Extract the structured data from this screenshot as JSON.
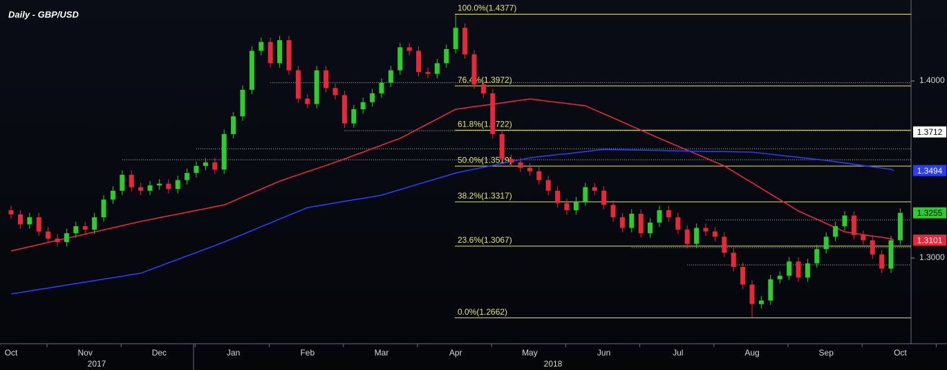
{
  "chart_data": {
    "type": "candlestick",
    "title": "Daily - GBP/USD",
    "categories": [
      "Oct",
      null,
      null,
      null,
      null,
      null,
      null,
      null,
      "Nov",
      null,
      null,
      null,
      null,
      null,
      null,
      null,
      "Dec",
      null,
      null,
      null,
      null,
      null,
      null,
      null,
      "Jan",
      null,
      null,
      null,
      null,
      null,
      null,
      null,
      "Feb",
      null,
      null,
      null,
      null,
      null,
      null,
      null,
      "Mar",
      null,
      null,
      null,
      null,
      null,
      null,
      null,
      "Apr",
      null,
      null,
      null,
      null,
      null,
      null,
      null,
      "May",
      null,
      null,
      null,
      null,
      null,
      null,
      null,
      "Jun",
      null,
      null,
      null,
      null,
      null,
      null,
      null,
      "Jul",
      null,
      null,
      null,
      null,
      null,
      null,
      null,
      "Aug",
      null,
      null,
      null,
      null,
      null,
      null,
      null,
      "Sep",
      null,
      null,
      null,
      null,
      null,
      null,
      null,
      "Oct"
    ],
    "years": [
      "2017",
      "2018"
    ],
    "open": [
      1.327,
      1.3246,
      1.319,
      1.323,
      1.315,
      1.311,
      1.309,
      1.314,
      1.318,
      1.316,
      1.323,
      1.333,
      1.338,
      1.347,
      1.34,
      1.338,
      1.341,
      1.342,
      1.339,
      1.344,
      1.348,
      1.352,
      1.354,
      1.35,
      1.37,
      1.38,
      1.395,
      1.417,
      1.422,
      1.41,
      1.423,
      1.406,
      1.39,
      1.387,
      1.406,
      1.396,
      1.392,
      1.376,
      1.384,
      1.388,
      1.393,
      1.399,
      1.406,
      1.419,
      1.417,
      1.405,
      1.404,
      1.41,
      1.418,
      1.43,
      1.415,
      1.398,
      1.393,
      1.37,
      1.356,
      1.354,
      1.351,
      1.349,
      1.344,
      1.338,
      1.331,
      1.327,
      1.332,
      1.34,
      1.338,
      1.33,
      1.323,
      1.317,
      1.325,
      1.314,
      1.32,
      1.327,
      1.323,
      1.316,
      1.308,
      1.317,
      1.315,
      1.312,
      1.303,
      1.295,
      1.285,
      1.274,
      1.276,
      1.288,
      1.29,
      1.298,
      1.289,
      1.297,
      1.305,
      1.312,
      1.318,
      1.324,
      1.313,
      1.31,
      1.302,
      1.294,
      1.31
    ],
    "high": [
      1.3295,
      1.3271,
      1.3255,
      1.3255,
      1.3175,
      1.3135,
      1.3165,
      1.3205,
      1.3205,
      1.3255,
      1.3355,
      1.3405,
      1.3495,
      1.3495,
      1.3425,
      1.3435,
      1.3445,
      1.3445,
      1.3465,
      1.3505,
      1.3545,
      1.3565,
      1.3565,
      1.3725,
      1.3825,
      1.3975,
      1.4195,
      1.4245,
      1.4245,
      1.4255,
      1.4255,
      1.4085,
      1.3925,
      1.4085,
      1.4085,
      1.3985,
      1.3945,
      1.3865,
      1.3905,
      1.3955,
      1.4015,
      1.4085,
      1.4215,
      1.4215,
      1.4195,
      1.4075,
      1.4125,
      1.4205,
      1.4377,
      1.4325,
      1.4175,
      1.4005,
      1.3955,
      1.3725,
      1.3585,
      1.3565,
      1.3535,
      1.3515,
      1.3465,
      1.3405,
      1.3335,
      1.3345,
      1.3425,
      1.3425,
      1.3405,
      1.3325,
      1.3255,
      1.3275,
      1.3275,
      1.3225,
      1.3295,
      1.3295,
      1.3255,
      1.3185,
      1.3195,
      1.3195,
      1.3175,
      1.3145,
      1.3055,
      1.2975,
      1.2875,
      1.2785,
      1.2905,
      1.2925,
      1.3005,
      1.3005,
      1.2995,
      1.3075,
      1.3145,
      1.3205,
      1.3265,
      1.3265,
      1.3155,
      1.3125,
      1.3045,
      1.3125,
      1.328
    ],
    "low": [
      1.3221,
      1.3165,
      1.3165,
      1.3125,
      1.3085,
      1.3065,
      1.3065,
      1.3115,
      1.3135,
      1.3135,
      1.3205,
      1.3305,
      1.3355,
      1.3375,
      1.3355,
      1.3355,
      1.3385,
      1.3365,
      1.3365,
      1.3415,
      1.3455,
      1.3495,
      1.3475,
      1.3475,
      1.3675,
      1.3775,
      1.3925,
      1.4145,
      1.4075,
      1.4075,
      1.4035,
      1.3875,
      1.3845,
      1.3845,
      1.3935,
      1.3895,
      1.3735,
      1.3735,
      1.3815,
      1.3855,
      1.3905,
      1.3965,
      1.4035,
      1.4145,
      1.4025,
      1.4015,
      1.4015,
      1.4075,
      1.4155,
      1.4125,
      1.3955,
      1.3905,
      1.3675,
      1.3535,
      1.3515,
      1.3485,
      1.3465,
      1.3415,
      1.3355,
      1.3285,
      1.3245,
      1.3245,
      1.3295,
      1.3355,
      1.3275,
      1.3205,
      1.3145,
      1.3145,
      1.3115,
      1.3115,
      1.3175,
      1.3205,
      1.3135,
      1.3055,
      1.3055,
      1.3125,
      1.3095,
      1.3005,
      1.2925,
      1.2825,
      1.2662,
      1.2715,
      1.2735,
      1.2855,
      1.2875,
      1.2865,
      1.2865,
      1.2945,
      1.3025,
      1.3095,
      1.3155,
      1.3105,
      1.3075,
      1.2995,
      1.2915,
      1.2915,
      1.3075
    ],
    "close": [
      1.3246,
      1.319,
      1.323,
      1.315,
      1.311,
      1.309,
      1.314,
      1.318,
      1.316,
      1.323,
      1.333,
      1.338,
      1.347,
      1.34,
      1.338,
      1.341,
      1.342,
      1.339,
      1.344,
      1.348,
      1.352,
      1.354,
      1.35,
      1.37,
      1.38,
      1.395,
      1.417,
      1.422,
      1.41,
      1.423,
      1.406,
      1.39,
      1.387,
      1.406,
      1.396,
      1.392,
      1.376,
      1.384,
      1.388,
      1.393,
      1.399,
      1.406,
      1.419,
      1.417,
      1.405,
      1.404,
      1.41,
      1.418,
      1.43,
      1.415,
      1.398,
      1.393,
      1.37,
      1.356,
      1.354,
      1.351,
      1.349,
      1.344,
      1.338,
      1.331,
      1.327,
      1.332,
      1.34,
      1.338,
      1.33,
      1.323,
      1.317,
      1.325,
      1.314,
      1.32,
      1.327,
      1.323,
      1.316,
      1.308,
      1.317,
      1.315,
      1.312,
      1.303,
      1.295,
      1.285,
      1.274,
      1.276,
      1.288,
      1.29,
      1.298,
      1.289,
      1.297,
      1.305,
      1.312,
      1.318,
      1.324,
      1.313,
      1.31,
      1.302,
      1.294,
      1.31,
      1.3255
    ],
    "up_color": "#2ecc2e",
    "down_color": "#e8283a",
    "moving_averages": [
      {
        "color": "#e8283a",
        "values": [
          1.304,
          1.3052,
          1.3064,
          1.3076,
          1.3088,
          1.31,
          1.3112,
          1.3123,
          1.3135,
          1.3147,
          1.3159,
          1.3171,
          1.3183,
          1.3195,
          1.3207,
          1.3217,
          1.3228,
          1.3238,
          1.3248,
          1.3259,
          1.3269,
          1.3279,
          1.329,
          1.33,
          1.3322,
          1.3345,
          1.3367,
          1.3389,
          1.3412,
          1.3434,
          1.3452,
          1.347,
          1.3488,
          1.3505,
          1.3523,
          1.3541,
          1.3559,
          1.3579,
          1.3598,
          1.3618,
          1.3637,
          1.3657,
          1.3676,
          1.3703,
          1.3731,
          1.3758,
          1.3785,
          1.3813,
          1.384,
          1.3847,
          1.3855,
          1.3862,
          1.3869,
          1.3876,
          1.3884,
          1.3891,
          1.3898,
          1.3892,
          1.3885,
          1.3879,
          1.3873,
          1.3866,
          1.386,
          1.3837,
          1.3814,
          1.3791,
          1.3768,
          1.3745,
          1.3722,
          1.3699,
          1.3676,
          1.3654,
          1.3631,
          1.3609,
          1.3587,
          1.3565,
          1.3542,
          1.352,
          1.3488,
          1.3456,
          1.3425,
          1.3393,
          1.3361,
          1.3329,
          1.3298,
          1.3266,
          1.3242,
          1.3219,
          1.3195,
          1.3172,
          1.3148,
          1.314,
          1.3132,
          1.3124,
          1.3117,
          1.3109,
          1.3101
        ]
      },
      {
        "color": "#2a3cff",
        "values": [
          1.2797,
          1.2805,
          1.2814,
          1.2822,
          1.283,
          1.2839,
          1.2847,
          1.2856,
          1.2864,
          1.2872,
          1.2881,
          1.2889,
          1.2897,
          1.2906,
          1.2914,
          1.2934,
          1.2953,
          1.2973,
          1.2992,
          1.3012,
          1.3031,
          1.3051,
          1.307,
          1.309,
          1.3112,
          1.3133,
          1.3155,
          1.3177,
          1.3198,
          1.322,
          1.3242,
          1.3263,
          1.3285,
          1.3294,
          1.3302,
          1.3311,
          1.332,
          1.3329,
          1.3337,
          1.3346,
          1.3355,
          1.3371,
          1.3386,
          1.3402,
          1.3418,
          1.3433,
          1.3449,
          1.3464,
          1.348,
          1.3491,
          1.3502,
          1.3512,
          1.3523,
          1.3534,
          1.3545,
          1.3555,
          1.3566,
          1.3572,
          1.3578,
          1.3584,
          1.3589,
          1.3595,
          1.3601,
          1.3607,
          1.3613,
          1.3612,
          1.3611,
          1.361,
          1.3609,
          1.3608,
          1.3607,
          1.3606,
          1.3605,
          1.3604,
          1.3603,
          1.3602,
          1.3601,
          1.3601,
          1.36,
          1.3599,
          1.3598,
          1.3592,
          1.3586,
          1.358,
          1.3574,
          1.3569,
          1.3563,
          1.3557,
          1.3551,
          1.3544,
          1.3537,
          1.353,
          1.3522,
          1.3515,
          1.3508,
          1.3501,
          1.3494
        ]
      }
    ],
    "fib_color": "#e6e65a",
    "fib_levels": [
      {
        "label": "100.0%(1.4377)",
        "value": 1.4377
      },
      {
        "label": "76.4%(1.3972)",
        "value": 1.3972
      },
      {
        "label": "61.8%(1.3722)",
        "value": 1.3722
      },
      {
        "label": "50.0%(1.3519)",
        "value": 1.3519
      },
      {
        "label": "38.2%(1.3317)",
        "value": 1.3317
      },
      {
        "label": "23.6%(1.3067)",
        "value": 1.3067
      },
      {
        "label": "0.0%(1.2662)",
        "value": 1.2662
      }
    ],
    "ref_lines": [
      {
        "value": 1.399,
        "from": 28
      },
      {
        "value": 1.3719,
        "from": 36
      },
      {
        "value": 1.3617,
        "from": 20
      },
      {
        "value": 1.3555,
        "from": 12
      },
      {
        "value": 1.3215,
        "from": 75
      },
      {
        "value": 1.3059,
        "from": 67
      },
      {
        "value": 1.2961,
        "from": 73
      }
    ],
    "price_tags": [
      {
        "value": 1.3712,
        "color": "#ffffff",
        "text_color": "#000000"
      },
      {
        "value": 1.3494,
        "color": "#2a3cff",
        "text_color": "#ffffff"
      },
      {
        "value": 1.3255,
        "color": "#2ecc2e",
        "text_color": "#000000"
      },
      {
        "value": 1.3101,
        "color": "#e8283a",
        "text_color": "#ffffff"
      }
    ],
    "ylim": [
      1.2516,
      1.4457
    ],
    "yticks": [
      {
        "value": 1.3,
        "label": "1.3000"
      },
      {
        "value": 1.4,
        "label": "1.4000"
      }
    ]
  }
}
